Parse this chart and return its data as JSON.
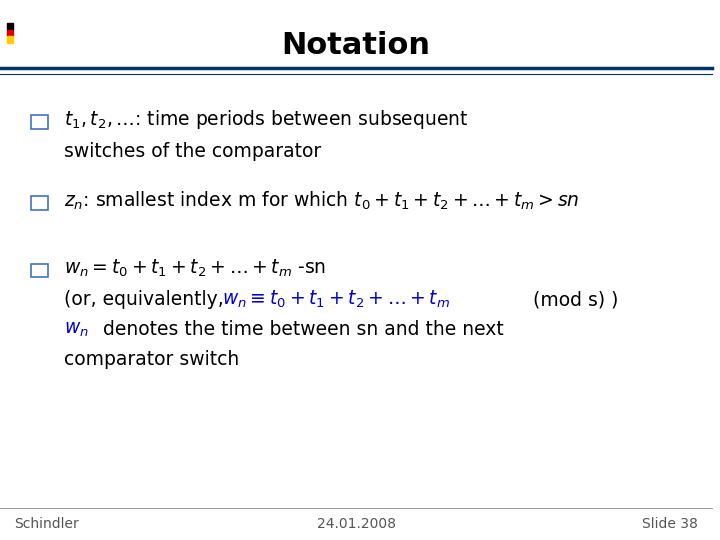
{
  "title": "Notation",
  "background_color": "#ffffff",
  "title_color": "#000000",
  "title_fontsize": 22,
  "header_line_color1": "#003366",
  "header_line_color2": "#003366",
  "bullet_box_color": "#4472c4",
  "text_color": "#000000",
  "blue_text_color": "#0000cc",
  "footer_left": "Schindler",
  "footer_center": "24.01.2008",
  "footer_right": "Slide 38",
  "footer_fontsize": 10
}
